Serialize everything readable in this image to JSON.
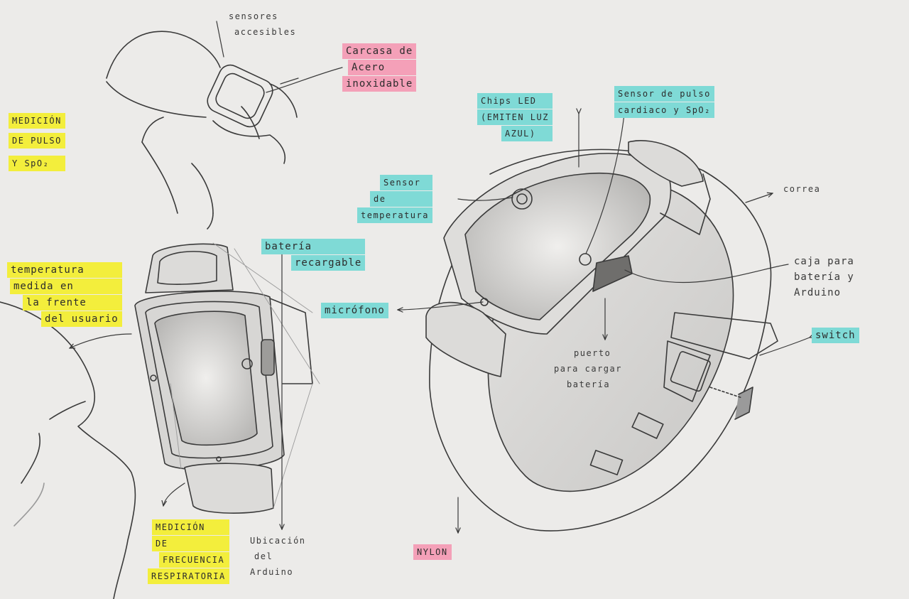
{
  "palette": {
    "paper": "#ecebe9",
    "pencil": "#333333",
    "yellow": "#f3ee3c",
    "cyan": "#7fdad6",
    "pink": "#f4a0b8"
  },
  "labels": {
    "sensores_accesibles": [
      "sensores",
      "accesibles"
    ],
    "carcasa": [
      "Carcasa de",
      "Acero",
      "inoxidable"
    ],
    "medicion_pulso": [
      "MEDICIÓN",
      "DE PULSO",
      "Y SpO₂"
    ],
    "chips_led": [
      "Chips LED",
      "(EMITEN LUZ",
      "AZUL)"
    ],
    "sensor_pulso": [
      "Sensor de pulso",
      "cardiaco y SpO₂"
    ],
    "sensor_temp": [
      "Sensor",
      "de",
      "temperatura"
    ],
    "correa": "correa",
    "caja": [
      "caja para",
      "batería y",
      "Arduino"
    ],
    "temperatura": [
      "temperatura",
      "medida en",
      "la frente",
      "del usuario"
    ],
    "bateria_recargable": [
      "batería",
      "recargable"
    ],
    "microfono": "micrófono",
    "switch": "switch",
    "puerto": [
      "puerto",
      "para cargar",
      "batería"
    ],
    "frecuencia": [
      "MEDICIÓN",
      "DE",
      "FRECUENCIA",
      "RESPIRATORIA"
    ],
    "ubicacion": [
      "Ubicación",
      "del",
      "Arduino"
    ],
    "nylon": "NYLON"
  }
}
